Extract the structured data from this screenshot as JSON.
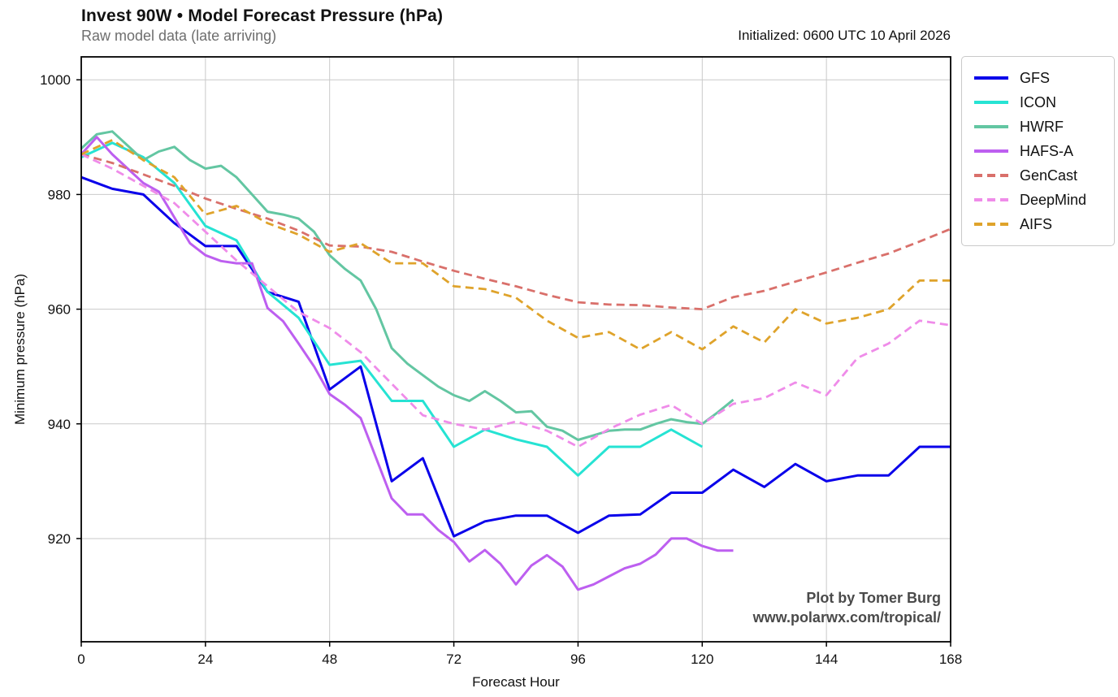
{
  "header": {
    "title": "Invest 90W • Model Forecast Pressure (hPa)",
    "subtitle": "Raw model data (late arriving)",
    "initialized": "Initialized: 0600 UTC 10 April 2026"
  },
  "attribution": {
    "line1": "Plot by Tomer Burg",
    "line2": "www.polarwx.com/tropical/"
  },
  "chart_data": {
    "type": "line",
    "title": "Invest 90W • Model Forecast Pressure (hPa)",
    "subtitle": "Raw model data (late arriving)",
    "xlabel": "Forecast Hour",
    "ylabel": "Minimum pressure (hPa)",
    "xlim": [
      0,
      168
    ],
    "ylim": [
      902,
      1004
    ],
    "xticks": [
      0,
      24,
      48,
      72,
      96,
      120,
      144,
      168
    ],
    "yticks": [
      920,
      940,
      960,
      980,
      1000
    ],
    "grid": true,
    "legend_position": "outside-right",
    "x_unit": "hours",
    "series": [
      {
        "name": "GFS",
        "color": "#0a00ea",
        "style": "solid",
        "x_start": 0,
        "x_step": 6,
        "values": [
          983,
          981,
          980,
          975,
          971,
          971,
          963,
          961.3,
          946,
          950,
          930,
          934,
          920.4,
          923,
          924,
          924,
          921,
          924,
          924.2,
          928,
          928,
          932,
          929,
          933,
          930,
          931,
          931,
          936,
          936
        ]
      },
      {
        "name": "ICON",
        "color": "#26e3d3",
        "style": "solid",
        "x_start": 0,
        "x_step": 6,
        "values": [
          986.5,
          989,
          986.5,
          982,
          974.5,
          972,
          963,
          958.5,
          950.3,
          951,
          944,
          944,
          936,
          939,
          937.3,
          936,
          931,
          936,
          936,
          939,
          936
        ]
      },
      {
        "name": "HWRF",
        "color": "#63c6a2",
        "style": "solid",
        "x_start": 0,
        "x_step": 3,
        "values": [
          988,
          990.5,
          991,
          988.5,
          986,
          987.5,
          988.3,
          986,
          984.5,
          985,
          983,
          980,
          977,
          976.5,
          975.8,
          973.5,
          969.4,
          967,
          965,
          960,
          953.2,
          950.5,
          948.5,
          946.5,
          945,
          944,
          945.7,
          944,
          942,
          942.2,
          939.5,
          938.8,
          937.2,
          938,
          938.8,
          939,
          939,
          940,
          940.8,
          940.3,
          940,
          942,
          944.2
        ]
      },
      {
        "name": "HAFS-A",
        "color": "#bd5ff0",
        "style": "solid",
        "x_start": 0,
        "x_step": 3,
        "values": [
          987,
          990,
          987,
          984.5,
          982,
          980.5,
          976,
          971.5,
          969.4,
          968.4,
          968,
          968,
          960.2,
          957.9,
          954,
          950,
          945.2,
          943.3,
          941,
          934,
          927,
          924.2,
          924.2,
          921.5,
          919.4,
          916,
          918,
          915.6,
          912,
          915.3,
          917.1,
          915.1,
          911.1,
          912,
          913.4,
          914.8,
          915.6,
          917.2,
          920,
          920,
          918.7,
          917.9,
          917.9
        ]
      },
      {
        "name": "GenCast",
        "color": "#d9706b",
        "style": "dashed",
        "x_start": 0,
        "x_step": 6,
        "values": [
          987,
          985.5,
          983.5,
          981.5,
          979.3,
          977.5,
          975.8,
          973.7,
          971.1,
          970.9,
          970,
          968.3,
          966.7,
          965.3,
          964,
          962.5,
          961.2,
          960.8,
          960.7,
          960.3,
          960,
          962.1,
          963.2,
          964.8,
          966.4,
          968.1,
          969.7,
          971.8,
          974
        ]
      },
      {
        "name": "DeepMind",
        "color": "#ef8ce9",
        "style": "dashed",
        "x_start": 0,
        "x_step": 6,
        "values": [
          987,
          984.5,
          981.5,
          978.5,
          973.5,
          968.5,
          964,
          959.5,
          956.7,
          952.5,
          947,
          941.5,
          940,
          939,
          940.4,
          938.8,
          936,
          939.1,
          941.6,
          943.3,
          940,
          943.5,
          944.5,
          947.2,
          945,
          951.5,
          954,
          958,
          957.2
        ]
      },
      {
        "name": "AIFS",
        "color": "#dfa32b",
        "style": "dashed",
        "x_start": 0,
        "x_step": 6,
        "values": [
          987,
          989.5,
          986,
          983,
          976.5,
          978,
          975,
          973,
          970,
          971.5,
          968,
          968,
          964,
          963.5,
          962,
          958,
          955,
          956,
          953,
          956,
          953,
          957,
          954.2,
          960,
          957.5,
          958.5,
          960,
          965,
          965
        ]
      }
    ]
  },
  "style_colors": {
    "grid": "#c9c9c9",
    "spine": "#000000",
    "subtitle_text": "#6e6e6e",
    "attribution_text": "#4a4a4a",
    "legend_border": "#c9c9c9"
  }
}
